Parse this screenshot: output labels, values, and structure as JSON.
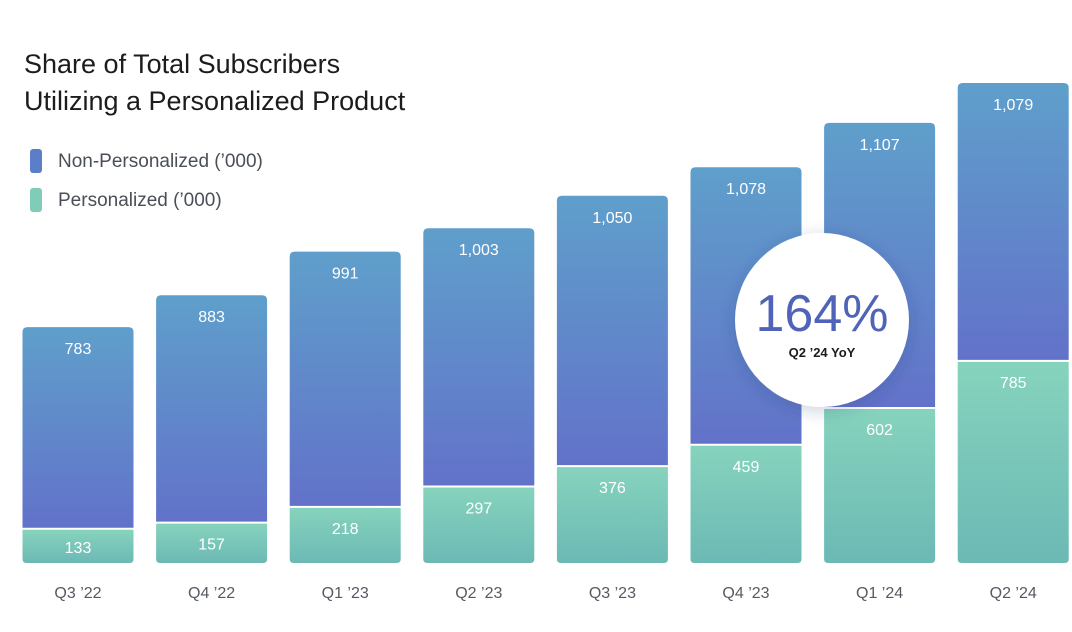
{
  "chart_data": {
    "type": "bar",
    "stacked": true,
    "title": [
      "Share of Total Subscribers",
      "Utilizing a Personalized Product"
    ],
    "categories": [
      "Q3 '22",
      "Q4 '22",
      "Q1 '23",
      "Q2 '23",
      "Q3 '23",
      "Q4 '23",
      "Q1 '24",
      "Q2 '24"
    ],
    "series": [
      {
        "name": "Personalized ('000)",
        "values": [
          133,
          157,
          218,
          297,
          376,
          459,
          602,
          785
        ],
        "color": "#7fcdb8"
      },
      {
        "name": "Non-Personalized ('000)",
        "values": [
          783,
          883,
          991,
          1003,
          1050,
          1078,
          1107,
          1079
        ],
        "color": "#5a7fc8"
      }
    ],
    "value_labels": {
      "Personalized ('000)": [
        "133",
        "157",
        "218",
        "297",
        "376",
        "459",
        "602",
        "785"
      ],
      "Non-Personalized ('000)": [
        "783",
        "883",
        "991",
        "1,003",
        "1,050",
        "1,078",
        "1,107",
        "1,079"
      ]
    },
    "legend": [
      {
        "label": "Non-Personalized (’000)",
        "color": "#5a7fc8"
      },
      {
        "label": "Personalized (’000)",
        "color": "#7fcdb8"
      }
    ],
    "tick_labels": [
      "Q3 ’22",
      "Q4 ’22",
      "Q1 ’23",
      "Q2 ’23",
      "Q3 ’23",
      "Q4 ’23",
      "Q1 ’24",
      "Q2 ’24"
    ],
    "ylim": [
      0,
      1864
    ],
    "xlabel": "",
    "ylabel": "",
    "grid": false,
    "legend_position": "top-left",
    "annotation": {
      "value": "164%",
      "label": "Q2 ’24 YoY"
    }
  },
  "colors": {
    "non_top": "#5f9fcb",
    "non_bottom": "#6272c9",
    "pers_top": "#86d3bd",
    "pers_bottom": "#6cb9b5",
    "callout_text": "#4f63b8"
  }
}
